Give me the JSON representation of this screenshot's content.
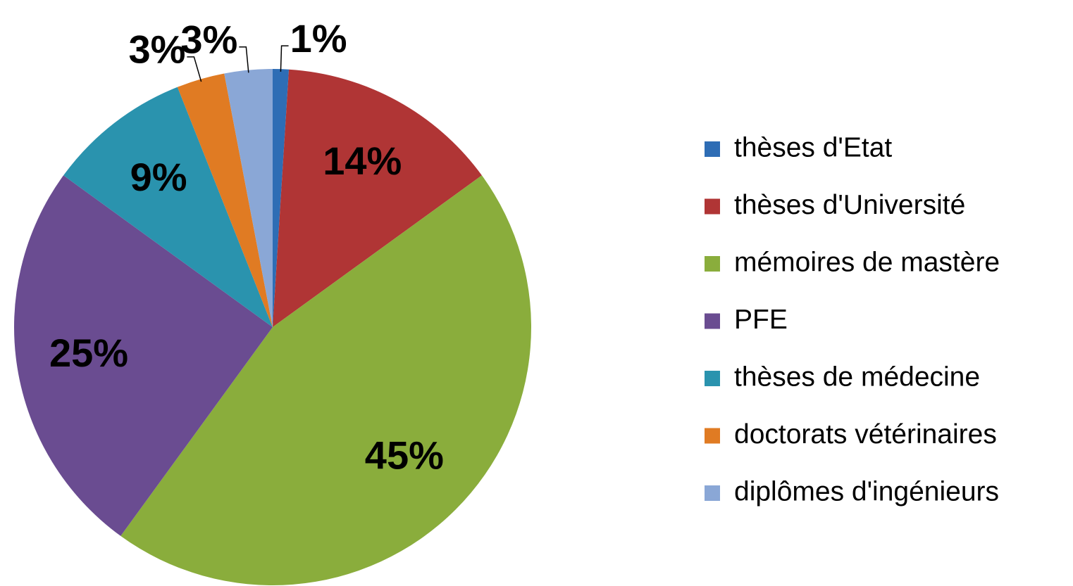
{
  "chart_data": {
    "type": "pie",
    "categories": [
      "thèses d'Etat",
      "thèses d'Université",
      "mémoires de mastère",
      "PFE",
      "thèses de médecine",
      "doctorats vétérinaires",
      "diplômes d'ingénieurs"
    ],
    "values": [
      1,
      14,
      45,
      25,
      9,
      3,
      3
    ],
    "value_labels": [
      "1%",
      "14%",
      "45%",
      "25%",
      "9%",
      "3%",
      "3%"
    ],
    "colors": [
      "#2e6db5",
      "#b03535",
      "#8aad3c",
      "#6a4c91",
      "#2a93ae",
      "#e07b23",
      "#8aa7d6"
    ],
    "legend": "right"
  }
}
